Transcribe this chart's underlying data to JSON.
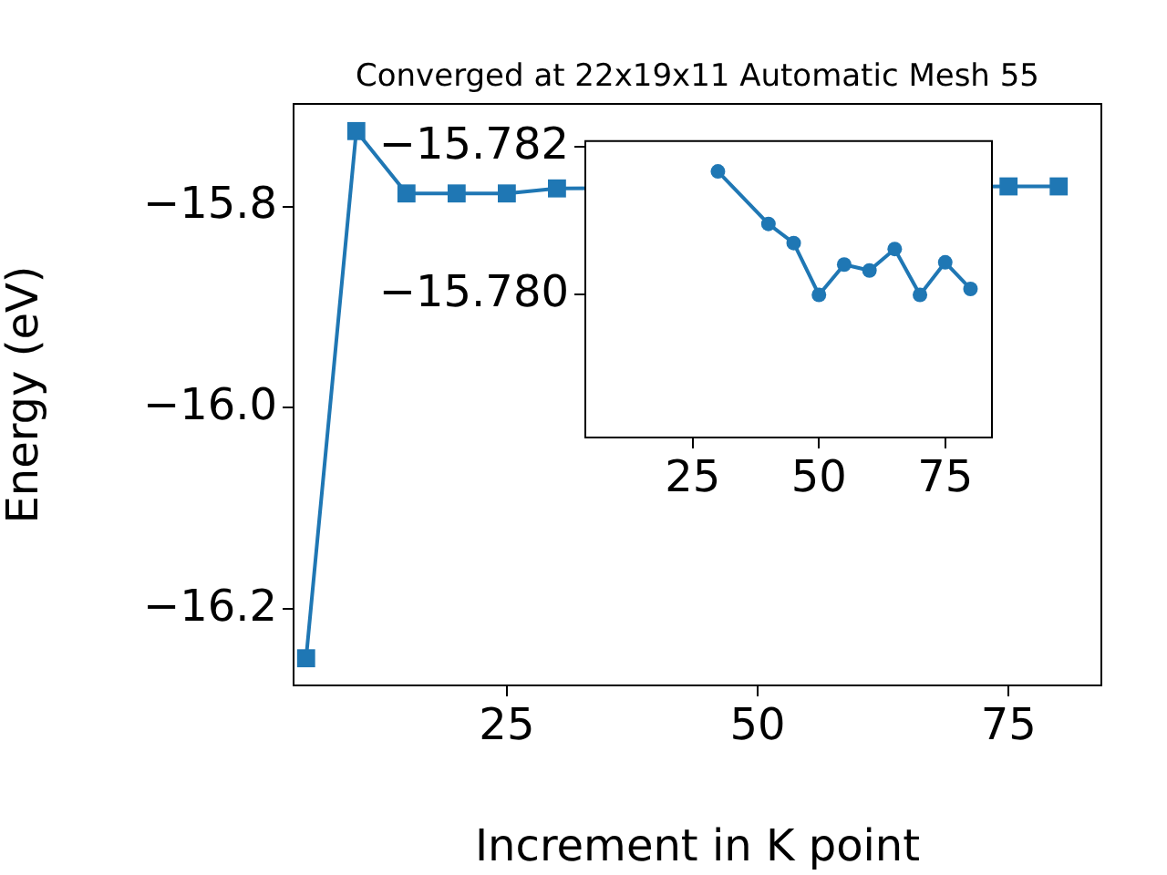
{
  "chart_data": [
    {
      "type": "line",
      "title": "Converged at 22x19x11 Automatic Mesh 55",
      "xlabel": "Increment in K point",
      "ylabel": "Energy (eV)",
      "x": [
        5,
        10,
        15,
        20,
        25,
        30,
        40,
        45,
        50,
        55,
        60,
        65,
        70,
        75,
        80
      ],
      "series": [
        {
          "color": "#1f77b4",
          "values": [
            -16.249,
            -15.725,
            -15.787,
            -15.787,
            -15.787,
            -15.782,
            null,
            null,
            null,
            null,
            null,
            null,
            null,
            -15.78,
            -15.78
          ]
        }
      ],
      "xlim": [
        3.75,
        84.25
      ],
      "xticks": [
        25,
        50,
        75
      ],
      "ylim": [
        -16.276,
        -15.698
      ],
      "yticks": [
        {
          "value": -16.2,
          "label": "−16.2"
        },
        {
          "value": -16.0,
          "label": "−16.0"
        },
        {
          "value": -15.8,
          "label": "−15.8"
        }
      ],
      "marker": "square",
      "grid": false,
      "legend": false
    },
    {
      "type": "line",
      "x": [
        30,
        40,
        45,
        50,
        55,
        60,
        65,
        70,
        75,
        80
      ],
      "series": [
        {
          "color": "#1f77b4",
          "values": [
            -15.78167,
            -15.78096,
            -15.7807,
            -15.78,
            -15.78041,
            -15.78033,
            -15.78062,
            -15.78,
            -15.78044,
            -15.78008
          ]
        }
      ],
      "xlim": [
        3.75,
        84.25
      ],
      "xticks": [
        25,
        50,
        75
      ],
      "ylim": [
        -15.77807,
        -15.78208
      ],
      "yticks": [
        {
          "value": -15.782,
          "label": "−15.782"
        },
        {
          "value": -15.78,
          "label": "−15.780"
        }
      ],
      "marker": "circle",
      "grid": false,
      "legend": false
    }
  ]
}
